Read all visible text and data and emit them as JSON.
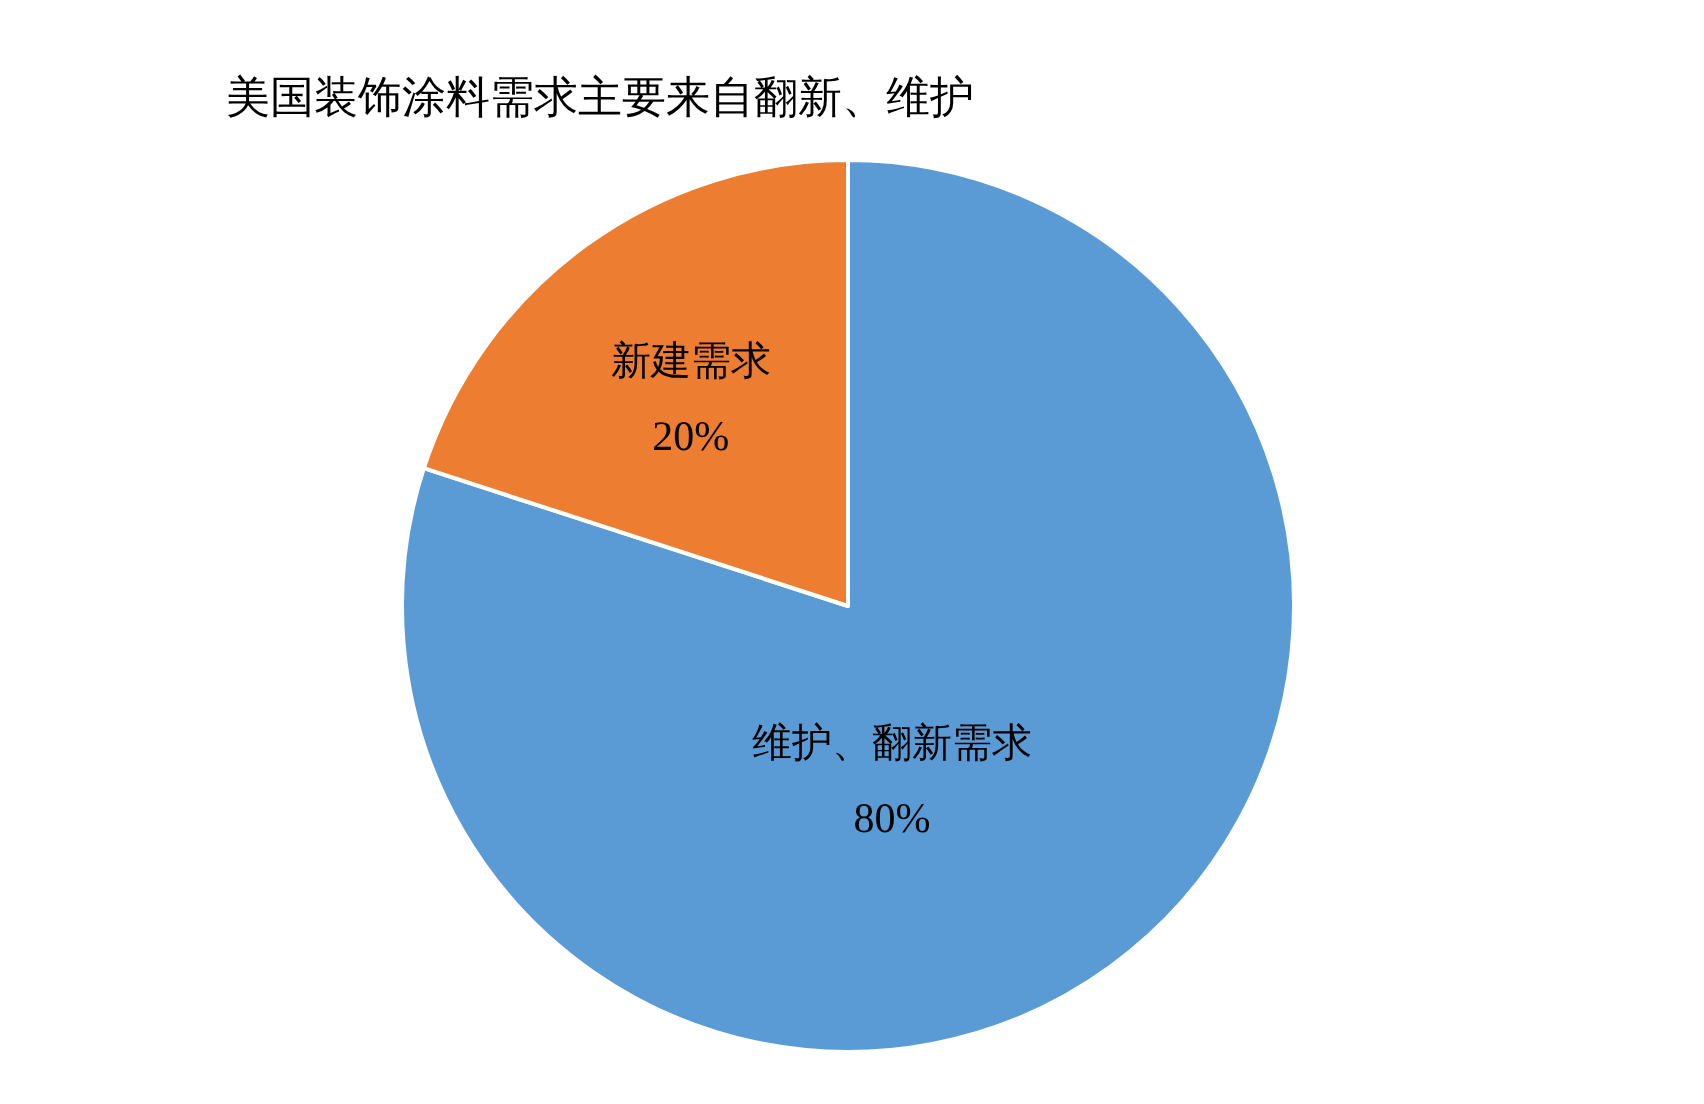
{
  "chart_data": {
    "type": "pie",
    "title": "美国装饰涂料需求主要来自翻新、维护",
    "categories": [
      "维护、翻新需求",
      "新建需求"
    ],
    "values": [
      80,
      20
    ],
    "colors": [
      "#5b9bd5",
      "#ed7d31"
    ],
    "value_labels": [
      "80%",
      "20%"
    ]
  }
}
